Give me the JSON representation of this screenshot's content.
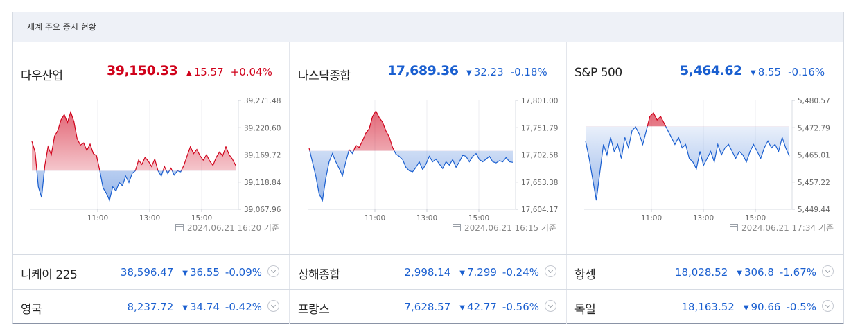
{
  "title": "세계 주요 증시 현황",
  "colors": {
    "up": "#d0021b",
    "down": "#1a5fd0"
  },
  "panels": [
    {
      "name": "다우산업",
      "value": "39,150.33",
      "direction": "up",
      "change": "15.57",
      "percent": "+0.04%",
      "yticks": [
        "39,271.48",
        "39,220.60",
        "39,169.72",
        "39,118.84",
        "39,067.96"
      ],
      "xticks": [
        "11:00",
        "13:00",
        "15:00"
      ],
      "timestamp": "2024.06.21 16:20 기준",
      "chart_data": {
        "type": "area",
        "ylim": [
          39067.96,
          39271.48
        ],
        "baseline": 39140,
        "x_range": [
          "09:30",
          "16:00"
        ],
        "values": [
          39195,
          39175,
          39110,
          39090,
          39150,
          39185,
          39170,
          39205,
          39215,
          39235,
          39245,
          39230,
          39250,
          39232,
          39200,
          39188,
          39192,
          39178,
          39190,
          39172,
          39168,
          39140,
          39108,
          39098,
          39085,
          39110,
          39102,
          39118,
          39112,
          39130,
          39118,
          39135,
          39140,
          39160,
          39152,
          39165,
          39158,
          39148,
          39162,
          39140,
          39130,
          39148,
          39135,
          39145,
          39132,
          39140,
          39138,
          39150,
          39168,
          39185,
          39172,
          39180,
          39168,
          39160,
          39170,
          39158,
          39150,
          39165,
          39175,
          39168,
          39185,
          39170,
          39162,
          39150
        ]
      }
    },
    {
      "name": "나스닥종합",
      "value": "17,689.36",
      "direction": "down",
      "change": "32.23",
      "percent": "-0.18%",
      "yticks": [
        "17,801.00",
        "17,751.79",
        "17,702.58",
        "17,653.38",
        "17,604.17"
      ],
      "xticks": [
        "11:00",
        "13:00",
        "15:00"
      ],
      "timestamp": "2024.06.21 16:15 기준",
      "chart_data": {
        "type": "area",
        "ylim": [
          17604.17,
          17801.0
        ],
        "baseline": 17710,
        "x_range": [
          "09:30",
          "16:00"
        ],
        "values": [
          17715,
          17690,
          17665,
          17632,
          17620,
          17660,
          17690,
          17705,
          17690,
          17678,
          17665,
          17690,
          17712,
          17705,
          17720,
          17716,
          17728,
          17742,
          17750,
          17772,
          17782,
          17770,
          17762,
          17746,
          17735,
          17716,
          17704,
          17700,
          17694,
          17680,
          17674,
          17672,
          17680,
          17690,
          17676,
          17686,
          17700,
          17690,
          17695,
          17686,
          17678,
          17690,
          17684,
          17694,
          17680,
          17690,
          17702,
          17700,
          17690,
          17700,
          17705,
          17694,
          17690,
          17695,
          17700,
          17690,
          17688,
          17692,
          17690,
          17698,
          17690,
          17689
        ]
      }
    },
    {
      "name": "S&P 500",
      "value": "5,464.62",
      "direction": "down",
      "change": "8.55",
      "percent": "-0.16%",
      "yticks": [
        "5,480.57",
        "5,472.79",
        "5,465.01",
        "5,457.22",
        "5,449.44"
      ],
      "xticks": [
        "11:00",
        "13:00",
        "15:00"
      ],
      "timestamp": "2024.06.21 17:34 기준",
      "chart_data": {
        "type": "area",
        "ylim": [
          5449.44,
          5480.57
        ],
        "baseline": 5473.17,
        "x_range": [
          "09:30",
          "16:00"
        ],
        "values": [
          5469,
          5464,
          5458,
          5452,
          5460,
          5468,
          5465,
          5470,
          5466,
          5468,
          5464,
          5470,
          5467,
          5472,
          5473,
          5471,
          5468,
          5472,
          5476,
          5477,
          5475,
          5476,
          5474,
          5472,
          5470,
          5468,
          5470,
          5467,
          5468,
          5464,
          5463,
          5461,
          5466,
          5462,
          5464,
          5466,
          5463,
          5468,
          5465,
          5467,
          5468,
          5466,
          5464,
          5466,
          5465,
          5463,
          5466,
          5468,
          5466,
          5464,
          5467,
          5469,
          5467,
          5468,
          5466,
          5470,
          5467,
          5464.62
        ]
      }
    }
  ],
  "rows": [
    [
      {
        "name": "니케이 225",
        "value": "38,596.47",
        "change": "36.55",
        "percent": "-0.09%"
      },
      {
        "name": "상해종합",
        "value": "2,998.14",
        "change": "7.299",
        "percent": "-0.24%"
      },
      {
        "name": "항셍",
        "value": "18,028.52",
        "change": "306.8",
        "percent": "-1.67%"
      }
    ],
    [
      {
        "name": "영국",
        "value": "8,237.72",
        "change": "34.74",
        "percent": "-0.42%"
      },
      {
        "name": "프랑스",
        "value": "7,628.57",
        "change": "42.77",
        "percent": "-0.56%"
      },
      {
        "name": "독일",
        "value": "18,163.52",
        "change": "90.66",
        "percent": "-0.5%"
      }
    ]
  ],
  "glyphs": {
    "up_arrow": "▲",
    "down_arrow": "▼"
  }
}
